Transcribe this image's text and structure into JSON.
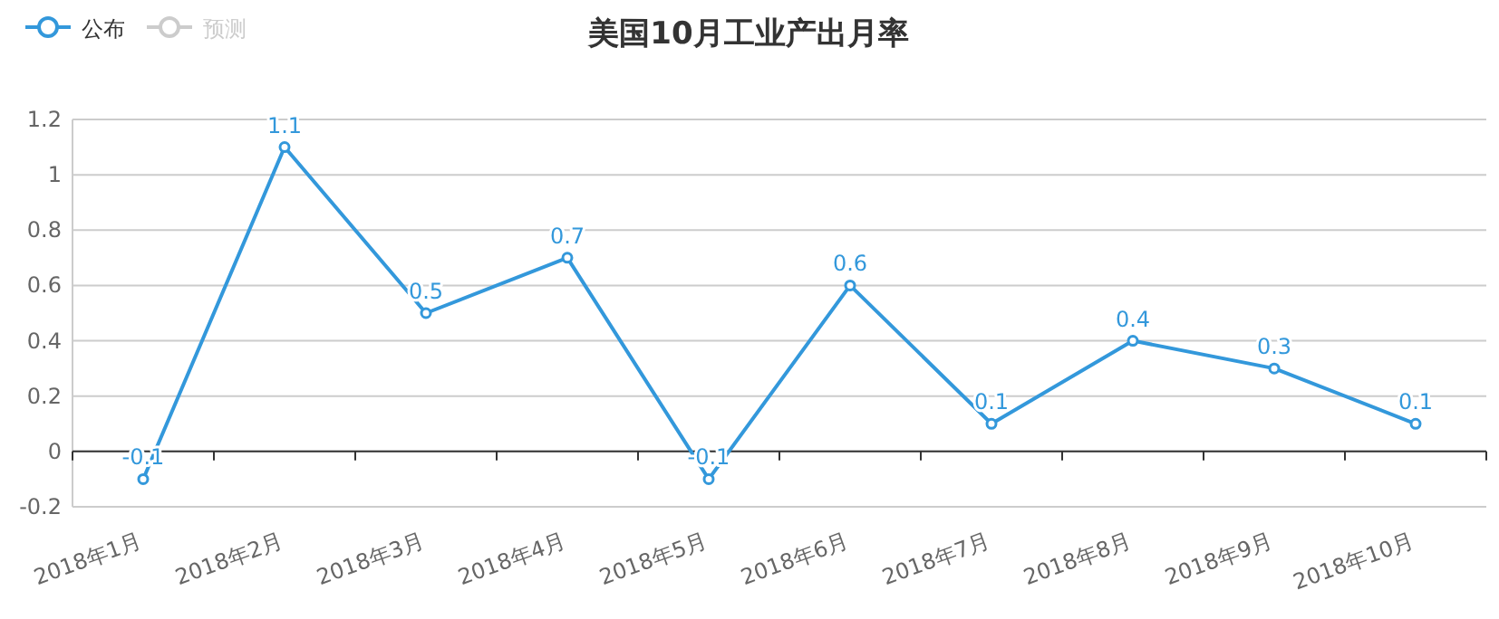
{
  "chart_data": {
    "type": "line",
    "title": "美国10月工业产出月率",
    "categories": [
      "2018年1月",
      "2018年2月",
      "2018年3月",
      "2018年4月",
      "2018年5月",
      "2018年6月",
      "2018年7月",
      "2018年8月",
      "2018年9月",
      "2018年10月"
    ],
    "series": [
      {
        "name": "公布",
        "color": "#3398db",
        "values": [
          -0.1,
          1.1,
          0.5,
          0.7,
          -0.1,
          0.6,
          0.1,
          0.4,
          0.3,
          0.1
        ]
      },
      {
        "name": "预测",
        "color": "#cccccc",
        "values": [
          null,
          null,
          null,
          null,
          null,
          null,
          null,
          null,
          null,
          null
        ]
      }
    ],
    "ylim": [
      -0.2,
      1.2
    ],
    "yticks": [
      -0.2,
      0,
      0.2,
      0.4,
      0.6,
      0.8,
      1,
      1.2
    ],
    "grid": "y",
    "legend": "top left",
    "marker": "circle",
    "line_style": "solid",
    "data_labels": true
  }
}
